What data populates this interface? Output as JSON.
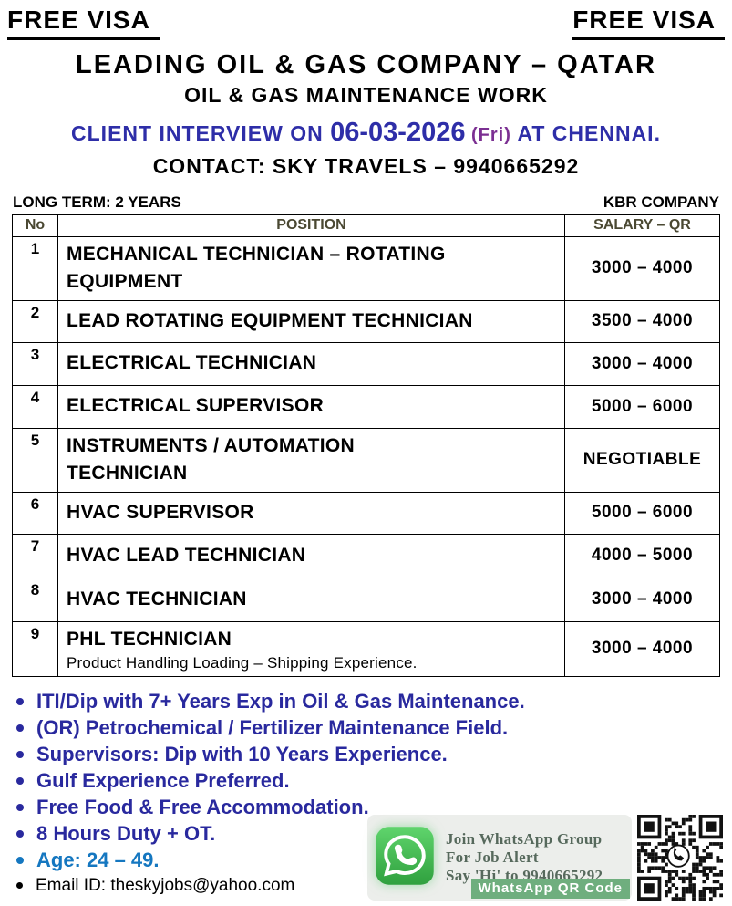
{
  "header": {
    "free_visa_left": "FREE VISA",
    "free_visa_right": "FREE VISA",
    "title": "LEADING OIL & GAS COMPANY – QATAR",
    "subtitle": "OIL & GAS MAINTENANCE WORK",
    "interview": {
      "prefix": "CLIENT INTERVIEW ON ",
      "date": "06-03-2026",
      "day": " (Fri) ",
      "suffix": "AT CHENNAI."
    },
    "contact": "CONTACT: SKY TRAVELS – 9940665292"
  },
  "table_meta": {
    "term": "LONG TERM: 2 YEARS",
    "company": "KBR COMPANY"
  },
  "table": {
    "headers": [
      "No",
      "POSITION",
      "SALARY – QR"
    ],
    "rows": [
      {
        "no": "1",
        "position": "MECHANICAL TECHNICIAN – ROTATING\nEQUIPMENT",
        "note": "",
        "salary": "3000 – 4000"
      },
      {
        "no": "2",
        "position": "LEAD ROTATING EQUIPMENT TECHNICIAN",
        "note": "",
        "salary": "3500 – 4000"
      },
      {
        "no": "3",
        "position": "ELECTRICAL TECHNICIAN",
        "note": "",
        "salary": "3000 – 4000"
      },
      {
        "no": "4",
        "position": "ELECTRICAL SUPERVISOR",
        "note": "",
        "salary": "5000 – 6000"
      },
      {
        "no": "5",
        "position": "INSTRUMENTS / AUTOMATION\nTECHNICIAN",
        "note": "",
        "salary": "NEGOTIABLE"
      },
      {
        "no": "6",
        "position": "HVAC SUPERVISOR",
        "note": "",
        "salary": "5000 – 6000"
      },
      {
        "no": "7",
        "position": "HVAC LEAD TECHNICIAN",
        "note": "",
        "salary": "4000 – 5000"
      },
      {
        "no": "8",
        "position": "HVAC TECHNICIAN",
        "note": "",
        "salary": "3000 – 4000"
      },
      {
        "no": "9",
        "position": "PHL TECHNICIAN",
        "note": "Product Handling Loading – Shipping Experience.",
        "salary": "3000 – 4000"
      }
    ]
  },
  "bullets": [
    {
      "text": "ITI/Dip with 7+ Years Exp in Oil & Gas Maintenance.",
      "style": "navy"
    },
    {
      "text": "(OR) Petrochemical / Fertilizer Maintenance Field.",
      "style": "navy"
    },
    {
      "text": "Supervisors: Dip with 10 Years Experience.",
      "style": "navy"
    },
    {
      "text": "Gulf Experience Preferred.",
      "style": "navy"
    },
    {
      "text": "Free Food & Free Accommodation.",
      "style": "navy"
    },
    {
      "text": "8 Hours Duty + OT.",
      "style": "navy"
    },
    {
      "text": "Age: 24 – 49.",
      "style": "blue"
    },
    {
      "text": "Email ID: theskyjobs@yahoo.com",
      "style": "plain"
    }
  ],
  "whatsapp": {
    "line1": "Join WhatsApp Group",
    "line2": "For Job Alert",
    "line3": "Say 'Hi' to 9940665292",
    "badge": "WhatsApp  QR Code",
    "icon": "whatsapp-icon",
    "qr": "whatsapp-qr-code"
  },
  "colors": {
    "interview_blue": "#2e2ea8",
    "friday_purple": "#7b2f92",
    "bullet_navy": "#29299e",
    "age_blue": "#1577c0",
    "table_header_olive": "#4a4832",
    "whatsapp_green": "#3fab4d",
    "badge_green": "#6fae7e"
  }
}
